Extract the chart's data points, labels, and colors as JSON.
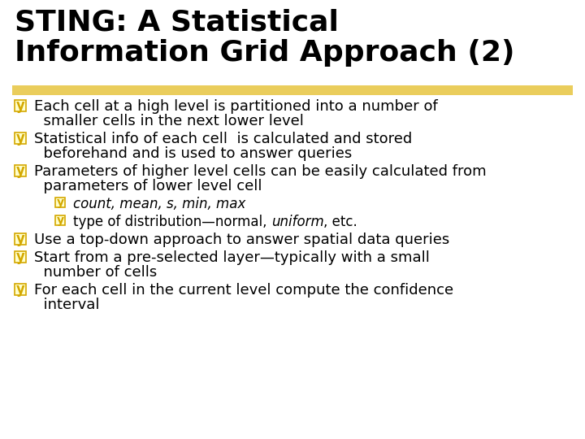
{
  "title_line1": "STING: A Statistical",
  "title_line2": "Information Grid Approach (2)",
  "title_fontsize": 26,
  "title_color": "#000000",
  "highlight_color": "#E8C84A",
  "background_color": "#FFFFFF",
  "bullet_color": "#D4A800",
  "bullet_box_color": "#D4A800",
  "text_color": "#000000",
  "text_fontsize": 13,
  "sub_fontsize": 12,
  "bullets": [
    {
      "level": 0,
      "lines": [
        "Each cell at a high level is partitioned into a number of",
        "  smaller cells in the next lower level"
      ]
    },
    {
      "level": 0,
      "lines": [
        "Statistical info of each cell  is calculated and stored",
        "  beforehand and is used to answer queries"
      ]
    },
    {
      "level": 0,
      "lines": [
        "Parameters of higher level cells can be easily calculated from",
        "  parameters of lower level cell"
      ]
    },
    {
      "level": 1,
      "parts": [
        {
          "text": "count, mean, s, min, max",
          "italic": true
        }
      ]
    },
    {
      "level": 1,
      "parts": [
        {
          "text": "type of distribution—normal, ",
          "italic": false
        },
        {
          "text": "uniform",
          "italic": true
        },
        {
          "text": ", etc.",
          "italic": false
        }
      ]
    },
    {
      "level": 0,
      "lines": [
        "Use a top-down approach to answer spatial data queries"
      ]
    },
    {
      "level": 0,
      "lines": [
        "Start from a pre-selected layer—typically with a small",
        "  number of cells"
      ]
    },
    {
      "level": 0,
      "lines": [
        "For each cell in the current level compute the confidence",
        "  interval"
      ]
    }
  ]
}
